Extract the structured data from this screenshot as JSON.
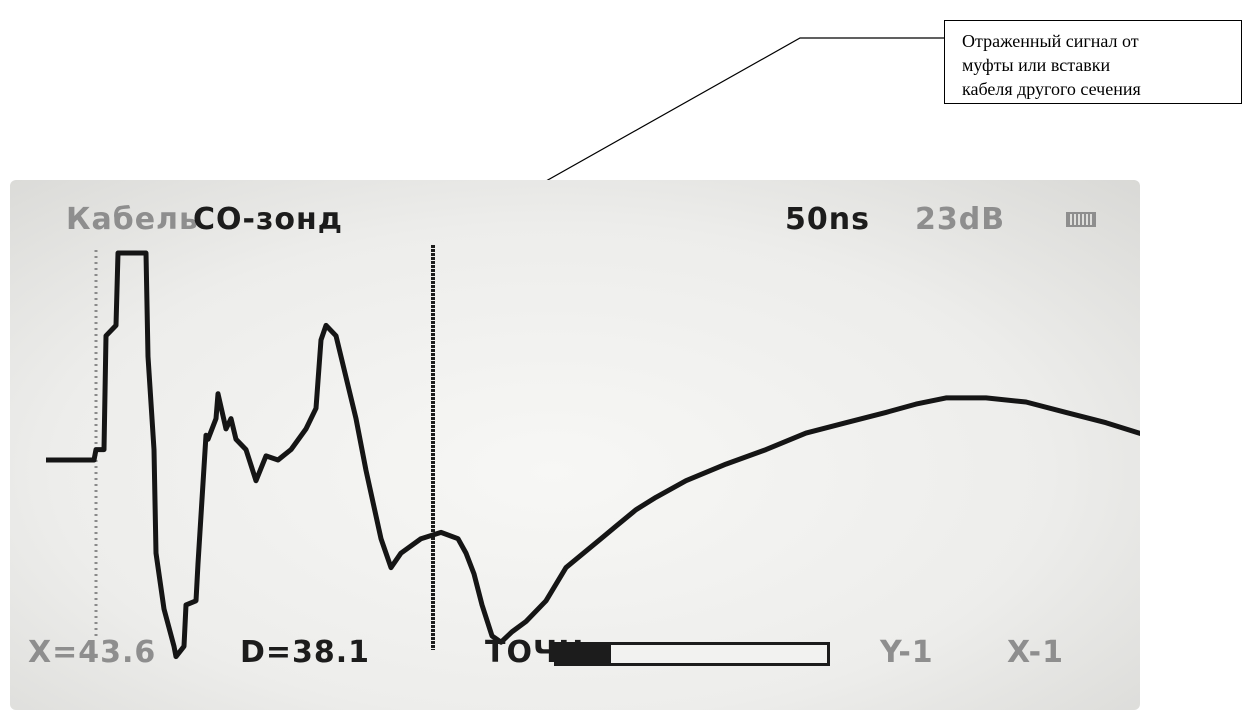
{
  "callout": {
    "lines": [
      "Отраженный сигнал от",
      "муфты или вставки",
      "кабеля другого сечения"
    ]
  },
  "screen": {
    "header_left_dim": "Кабель",
    "header_left": "СО-зонд",
    "pulse_width": "50ns",
    "gain": "23dB",
    "footer": {
      "x_value": "X=43.6",
      "d_value": "D=38.1",
      "mode": "ТОЧН",
      "y_scale": "Y-1",
      "x_scale": "X-1"
    },
    "battery_level": 0.2
  },
  "trace": {
    "x": [
      0,
      48,
      50,
      58,
      60,
      70,
      72,
      100,
      102,
      108,
      110,
      118,
      128,
      130,
      138,
      140,
      150,
      152,
      160,
      162,
      170,
      172,
      180,
      185,
      190,
      200,
      210,
      220,
      232,
      245,
      260,
      270,
      275,
      280,
      290,
      300,
      310,
      320,
      335,
      345,
      355,
      375,
      395,
      412,
      420,
      428,
      436,
      446,
      455,
      466,
      480,
      500,
      520,
      540,
      555,
      570,
      590,
      610,
      640,
      680,
      720,
      760,
      800,
      840,
      870,
      900,
      940,
      980,
      1020,
      1060,
      1100,
      1130
    ],
    "y": [
      0.0,
      0.0,
      0.05,
      0.05,
      0.6,
      0.65,
      1.0,
      1.0,
      0.5,
      0.05,
      -0.45,
      -0.72,
      -0.9,
      -0.95,
      -0.9,
      -0.7,
      -0.68,
      -0.5,
      0.12,
      0.1,
      0.2,
      0.32,
      0.15,
      0.2,
      0.1,
      0.05,
      -0.1,
      0.02,
      0.0,
      0.05,
      0.15,
      0.25,
      0.58,
      0.65,
      0.6,
      0.4,
      0.2,
      -0.05,
      -0.38,
      -0.52,
      -0.45,
      -0.38,
      -0.35,
      -0.38,
      -0.45,
      -0.55,
      -0.7,
      -0.85,
      -0.88,
      -0.83,
      -0.78,
      -0.68,
      -0.52,
      -0.44,
      -0.38,
      -0.32,
      -0.24,
      -0.18,
      -0.1,
      -0.02,
      0.05,
      0.13,
      0.18,
      0.23,
      0.27,
      0.3,
      0.3,
      0.28,
      0.23,
      0.18,
      0.12,
      0.08
    ]
  }
}
